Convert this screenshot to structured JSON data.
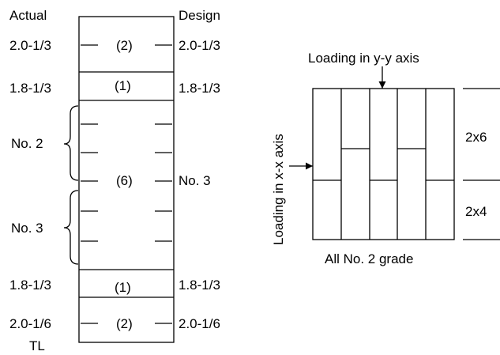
{
  "left_figure": {
    "header_actual": "Actual",
    "header_design": "Design",
    "rows": [
      {
        "actual": "2.0-1/3",
        "count": "(2)",
        "design": "2.0-1/3"
      },
      {
        "actual": "1.8-1/3",
        "count": "(1)",
        "design": "1.8-1/3"
      },
      {
        "count": "(6)",
        "design": "No. 3"
      },
      {
        "actual": "1.8-1/3",
        "count": "(1)",
        "design": "1.8-1/3"
      },
      {
        "actual": "2.0-1/6",
        "count": "(2)",
        "design": "2.0-1/6"
      }
    ],
    "group_upper": "No. 2",
    "group_lower": "No. 3",
    "bottom_label": "TL"
  },
  "right_figure": {
    "load_y_label": "Loading in y-y axis",
    "load_x_label": "Loading in x-x axis",
    "upper_size": "2x6",
    "lower_size": "2x4",
    "grade_label": "All No. 2 grade"
  }
}
